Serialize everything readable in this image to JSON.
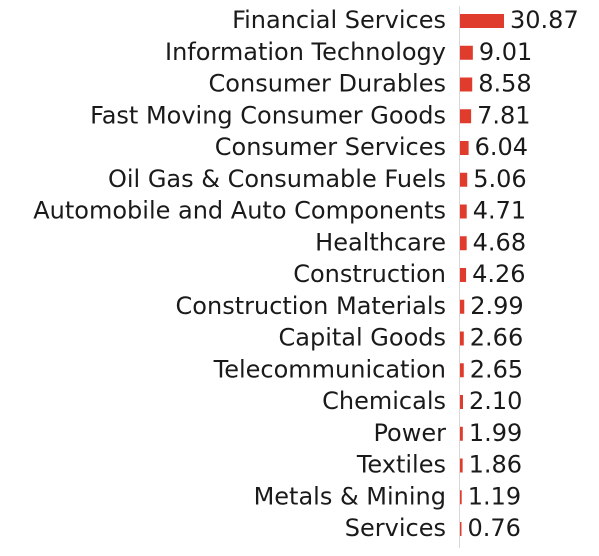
{
  "chart_data": {
    "type": "bar",
    "orientation": "horizontal",
    "categories": [
      "Financial Services",
      "Information Technology",
      "Consumer Durables",
      "Fast Moving Consumer Goods",
      "Consumer Services",
      "Oil Gas & Consumable Fuels",
      "Automobile and Auto Components",
      "Healthcare",
      "Construction",
      "Construction Materials",
      "Capital Goods",
      "Telecommunication",
      "Chemicals",
      "Power",
      "Textiles",
      "Metals & Mining",
      "Services"
    ],
    "values": [
      30.87,
      9.01,
      8.58,
      7.81,
      6.04,
      5.06,
      4.71,
      4.68,
      4.26,
      2.99,
      2.66,
      2.65,
      2.1,
      1.99,
      1.86,
      1.19,
      0.76
    ],
    "value_labels": [
      "30.87",
      "9.01",
      "8.58",
      "7.81",
      "6.04",
      "5.06",
      "4.71",
      "4.68",
      "4.26",
      "2.99",
      "2.66",
      "2.65",
      "2.10",
      "1.99",
      "1.86",
      "1.19",
      "0.76"
    ],
    "title": "",
    "xlabel": "",
    "ylabel": "",
    "xlim": [
      0,
      30.87
    ],
    "grid": false,
    "legend": "none",
    "colors": {
      "bar": "#e03c2e",
      "text": "#1a1a1a",
      "axis": "#d8d8d8"
    }
  }
}
